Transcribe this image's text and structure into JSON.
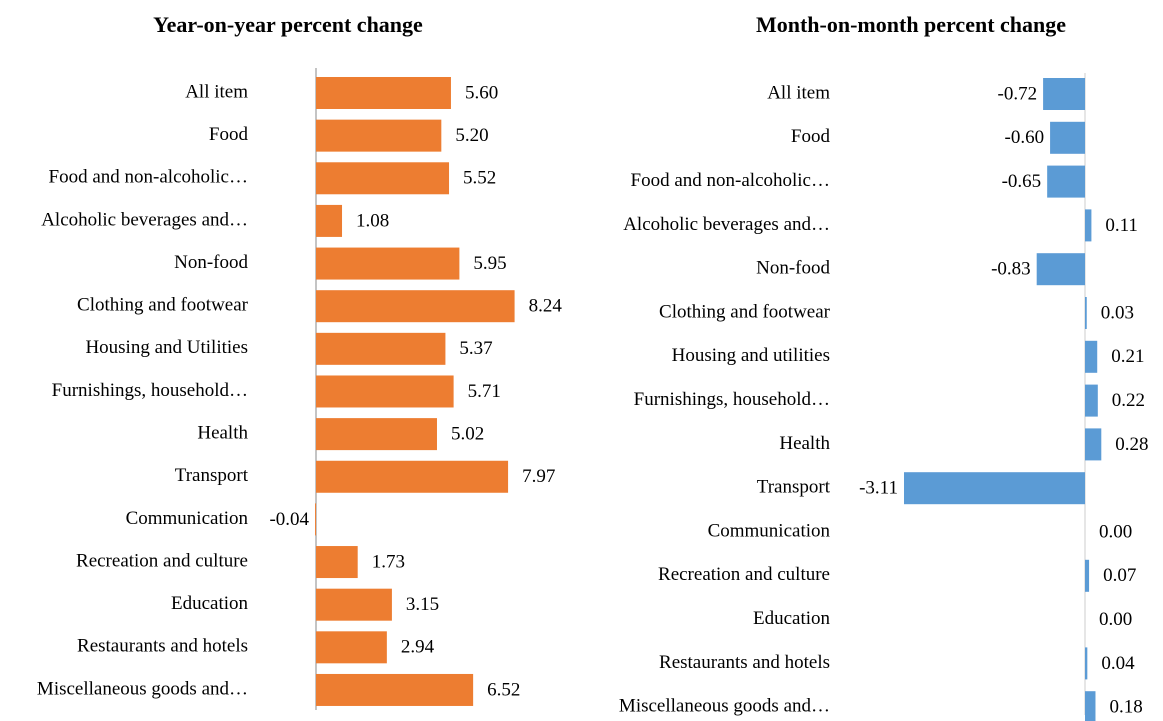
{
  "chart_data": [
    {
      "type": "bar",
      "orientation": "horizontal",
      "title": "Year-on-year percent change",
      "color": "#ED7D31",
      "categories": [
        "All item",
        "Food",
        "Food and non-alcoholic…",
        "Alcoholic beverages and…",
        "Non-food",
        "Clothing and footwear",
        "Housing and Utilities",
        "Furnishings, household…",
        "Health",
        "Transport",
        "Communication",
        "Recreation and culture",
        "Education",
        "Restaurants and hotels",
        "Miscellaneous goods and…"
      ],
      "values": [
        5.6,
        5.2,
        5.52,
        1.08,
        5.95,
        8.24,
        5.37,
        5.71,
        5.02,
        7.97,
        -0.04,
        1.73,
        3.15,
        2.94,
        6.52
      ],
      "value_labels": [
        "5.60",
        "5.20",
        "5.52",
        "1.08",
        "5.95",
        "8.24",
        "5.37",
        "5.71",
        "5.02",
        "7.97",
        "-0.04",
        "1.73",
        "3.15",
        "2.94",
        "6.52"
      ]
    },
    {
      "type": "bar",
      "orientation": "horizontal",
      "title": "Month-on-month percent change",
      "color": "#5B9BD5",
      "categories": [
        "All item",
        "Food",
        "Food and non-alcoholic…",
        "Alcoholic beverages and…",
        "Non-food",
        "Clothing and footwear",
        "Housing and utilities",
        "Furnishings, household…",
        "Health",
        "Transport",
        "Communication",
        "Recreation and culture",
        "Education",
        "Restaurants and hotels",
        "Miscellaneous goods and…"
      ],
      "values": [
        -0.72,
        -0.6,
        -0.65,
        0.11,
        -0.83,
        0.03,
        0.21,
        0.22,
        0.28,
        -3.11,
        0,
        0.07,
        0,
        0.04,
        0.18
      ],
      "value_labels": [
        "-0.72",
        "-0.60",
        "-0.65",
        "0.11",
        "-0.83",
        "0.03",
        "0.21",
        "0.22",
        "0.28",
        "-3.11",
        "0.00",
        "0.07",
        "0.00",
        "0.04",
        "0.18"
      ]
    }
  ]
}
